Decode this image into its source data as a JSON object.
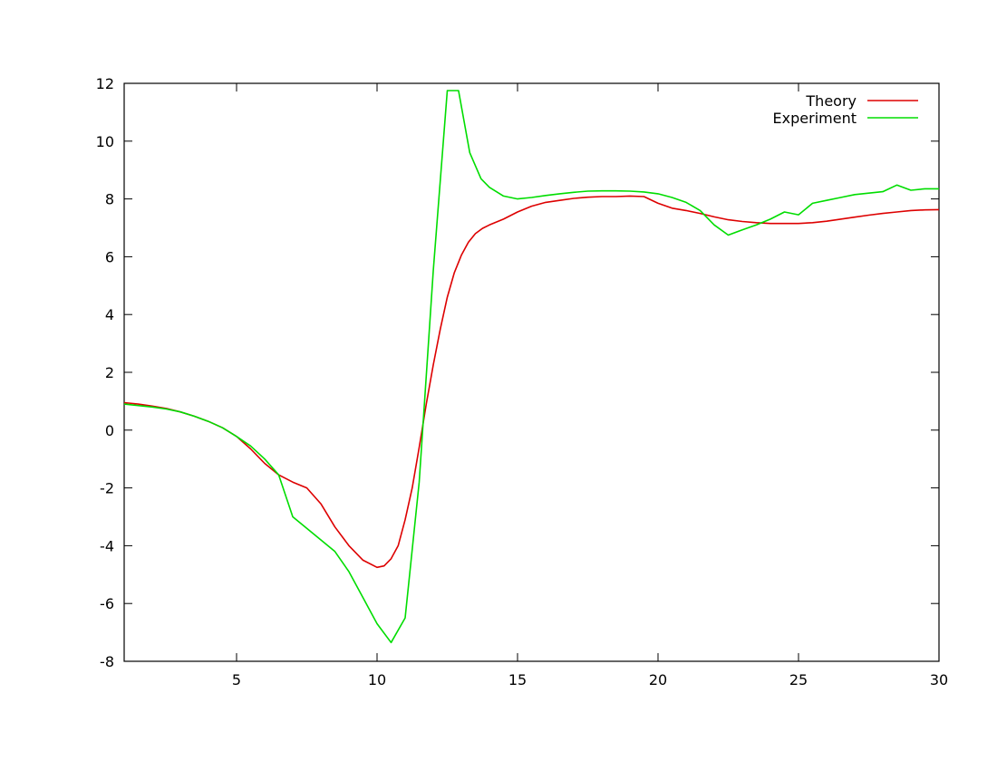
{
  "chart_data": {
    "type": "line",
    "title": "",
    "xlabel": "",
    "ylabel": "",
    "xlim": [
      1,
      30
    ],
    "ylim": [
      -8,
      12
    ],
    "xticks": [
      5,
      10,
      15,
      20,
      25,
      30
    ],
    "yticks": [
      -8,
      -6,
      -4,
      -2,
      0,
      2,
      4,
      6,
      8,
      10,
      12
    ],
    "grid": false,
    "legend_position": "top-right",
    "series": [
      {
        "name": "Theory",
        "color": "#dd0000",
        "x": [
          1,
          1.5,
          2,
          2.5,
          3,
          3.5,
          4,
          4.5,
          5,
          5.5,
          6,
          6.5,
          7,
          7.5,
          8,
          8.5,
          9,
          9.5,
          10,
          10.25,
          10.5,
          10.75,
          11,
          11.25,
          11.5,
          11.75,
          12,
          12.25,
          12.5,
          12.75,
          13,
          13.25,
          13.5,
          13.75,
          14,
          14.5,
          15,
          15.5,
          16,
          16.5,
          17,
          17.5,
          18,
          18.5,
          19,
          19.5,
          20,
          20.5,
          21,
          21.5,
          22,
          22.5,
          23,
          23.5,
          24,
          24.5,
          25,
          25.5,
          26,
          26.5,
          27,
          27.5,
          28,
          28.5,
          29,
          29.5,
          30
        ],
        "y": [
          0.95,
          0.9,
          0.83,
          0.75,
          0.63,
          0.48,
          0.3,
          0.08,
          -0.22,
          -0.65,
          -1.15,
          -1.55,
          -1.8,
          -2.0,
          -2.55,
          -3.35,
          -4.0,
          -4.5,
          -4.75,
          -4.7,
          -4.45,
          -4.0,
          -3.1,
          -2.0,
          -0.6,
          0.9,
          2.25,
          3.5,
          4.6,
          5.45,
          6.05,
          6.5,
          6.8,
          6.98,
          7.1,
          7.3,
          7.55,
          7.75,
          7.88,
          7.95,
          8.02,
          8.06,
          8.08,
          8.08,
          8.1,
          8.08,
          7.85,
          7.68,
          7.6,
          7.5,
          7.38,
          7.28,
          7.22,
          7.18,
          7.15,
          7.15,
          7.15,
          7.18,
          7.23,
          7.3,
          7.37,
          7.44,
          7.5,
          7.55,
          7.6,
          7.62,
          7.63
        ]
      },
      {
        "name": "Experiment",
        "color": "#00dd00",
        "x": [
          1,
          1.5,
          2,
          2.5,
          3,
          3.5,
          4,
          4.5,
          5,
          5.5,
          6,
          6.5,
          7,
          7.5,
          8,
          8.5,
          9,
          9.5,
          10,
          10.5,
          11,
          11.5,
          12,
          12.5,
          12.9,
          13.3,
          13.7,
          14,
          14.5,
          15,
          15.5,
          16,
          16.5,
          17,
          17.5,
          18,
          18.5,
          19,
          19.5,
          20,
          20.5,
          21,
          21.5,
          22,
          22.5,
          23,
          23.5,
          24,
          24.5,
          25,
          25.5,
          26,
          26.5,
          27,
          27.5,
          28,
          28.5,
          29,
          29.5,
          30
        ],
        "y": [
          0.9,
          0.85,
          0.8,
          0.73,
          0.63,
          0.48,
          0.3,
          0.08,
          -0.22,
          -0.55,
          -1.0,
          -1.55,
          -3.0,
          -3.4,
          -3.8,
          -4.2,
          -4.9,
          -5.8,
          -6.7,
          -7.35,
          -6.5,
          -1.8,
          5.5,
          11.75,
          11.75,
          9.6,
          8.7,
          8.4,
          8.1,
          8.0,
          8.05,
          8.12,
          8.18,
          8.23,
          8.27,
          8.28,
          8.28,
          8.27,
          8.24,
          8.18,
          8.05,
          7.88,
          7.6,
          7.1,
          6.75,
          6.93,
          7.1,
          7.3,
          7.55,
          7.45,
          7.85,
          7.95,
          8.05,
          8.15,
          8.2,
          8.25,
          8.48,
          8.3,
          8.35,
          8.35
        ]
      }
    ]
  }
}
